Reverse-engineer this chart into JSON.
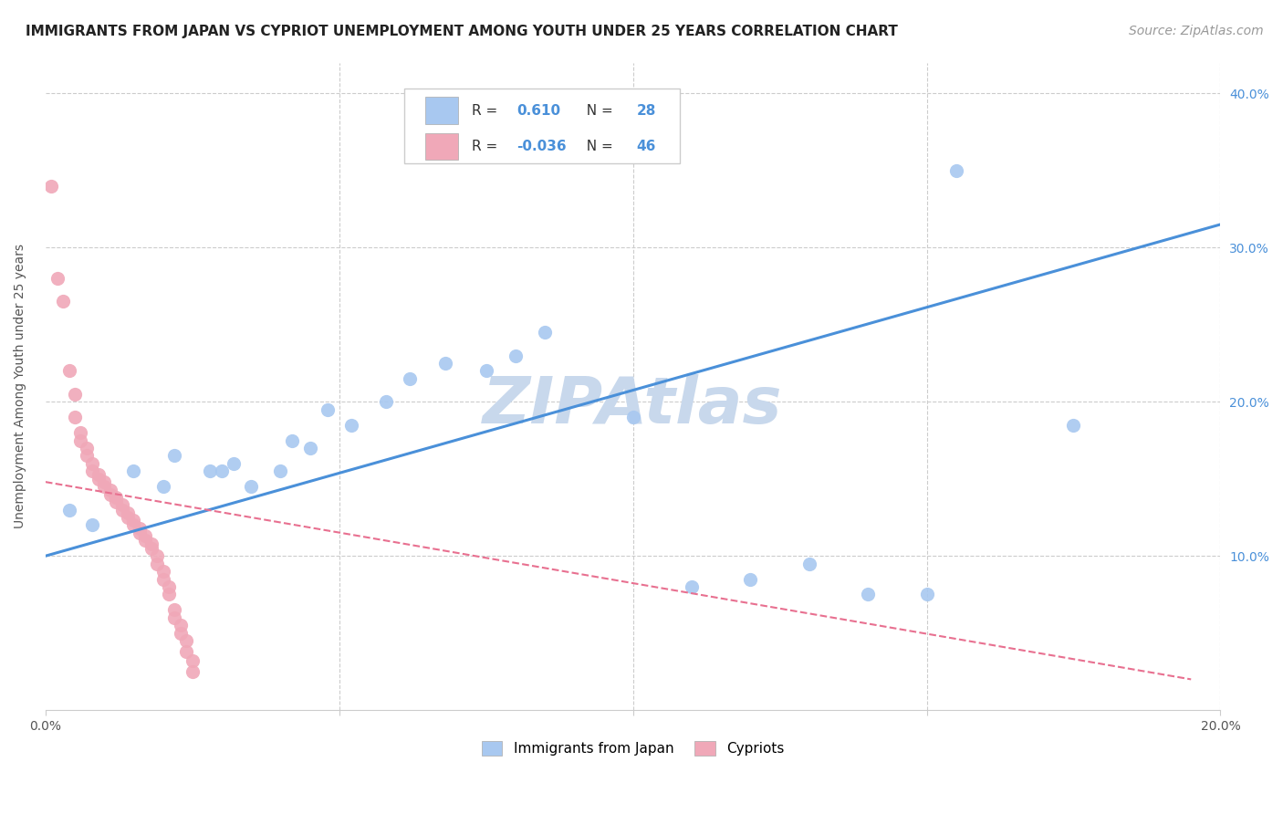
{
  "title": "IMMIGRANTS FROM JAPAN VS CYPRIOT UNEMPLOYMENT AMONG YOUTH UNDER 25 YEARS CORRELATION CHART",
  "source": "Source: ZipAtlas.com",
  "ylabel": "Unemployment Among Youth under 25 years",
  "watermark": "ZIPAtlas",
  "xmin": 0.0,
  "xmax": 0.2,
  "ymin": 0.0,
  "ymax": 0.42,
  "legend_entries": [
    {
      "color": "#a8c8f0",
      "label": "Immigrants from Japan",
      "R": "0.610",
      "N": "28"
    },
    {
      "color": "#f0a8b8",
      "label": "Cypriots",
      "R": "-0.036",
      "N": "46"
    }
  ],
  "japan_dots": [
    [
      0.004,
      0.13
    ],
    [
      0.008,
      0.12
    ],
    [
      0.015,
      0.155
    ],
    [
      0.02,
      0.145
    ],
    [
      0.022,
      0.165
    ],
    [
      0.028,
      0.155
    ],
    [
      0.03,
      0.155
    ],
    [
      0.032,
      0.16
    ],
    [
      0.035,
      0.145
    ],
    [
      0.04,
      0.155
    ],
    [
      0.042,
      0.175
    ],
    [
      0.045,
      0.17
    ],
    [
      0.048,
      0.195
    ],
    [
      0.052,
      0.185
    ],
    [
      0.058,
      0.2
    ],
    [
      0.062,
      0.215
    ],
    [
      0.068,
      0.225
    ],
    [
      0.075,
      0.22
    ],
    [
      0.08,
      0.23
    ],
    [
      0.085,
      0.245
    ],
    [
      0.1,
      0.19
    ],
    [
      0.11,
      0.08
    ],
    [
      0.12,
      0.085
    ],
    [
      0.13,
      0.095
    ],
    [
      0.14,
      0.075
    ],
    [
      0.15,
      0.075
    ],
    [
      0.155,
      0.35
    ],
    [
      0.175,
      0.185
    ]
  ],
  "cypriot_dots": [
    [
      0.001,
      0.34
    ],
    [
      0.002,
      0.28
    ],
    [
      0.003,
      0.265
    ],
    [
      0.004,
      0.22
    ],
    [
      0.005,
      0.205
    ],
    [
      0.005,
      0.19
    ],
    [
      0.006,
      0.18
    ],
    [
      0.006,
      0.175
    ],
    [
      0.007,
      0.17
    ],
    [
      0.007,
      0.165
    ],
    [
      0.008,
      0.16
    ],
    [
      0.008,
      0.155
    ],
    [
      0.009,
      0.153
    ],
    [
      0.009,
      0.15
    ],
    [
      0.01,
      0.148
    ],
    [
      0.01,
      0.145
    ],
    [
      0.011,
      0.143
    ],
    [
      0.011,
      0.14
    ],
    [
      0.012,
      0.138
    ],
    [
      0.012,
      0.135
    ],
    [
      0.013,
      0.133
    ],
    [
      0.013,
      0.13
    ],
    [
      0.014,
      0.128
    ],
    [
      0.014,
      0.125
    ],
    [
      0.015,
      0.123
    ],
    [
      0.015,
      0.12
    ],
    [
      0.016,
      0.118
    ],
    [
      0.016,
      0.115
    ],
    [
      0.017,
      0.113
    ],
    [
      0.017,
      0.11
    ],
    [
      0.018,
      0.108
    ],
    [
      0.018,
      0.105
    ],
    [
      0.019,
      0.1
    ],
    [
      0.019,
      0.095
    ],
    [
      0.02,
      0.09
    ],
    [
      0.02,
      0.085
    ],
    [
      0.021,
      0.08
    ],
    [
      0.021,
      0.075
    ],
    [
      0.022,
      0.065
    ],
    [
      0.022,
      0.06
    ],
    [
      0.023,
      0.055
    ],
    [
      0.023,
      0.05
    ],
    [
      0.024,
      0.045
    ],
    [
      0.024,
      0.038
    ],
    [
      0.025,
      0.032
    ],
    [
      0.025,
      0.025
    ]
  ],
  "japan_line_x": [
    0.0,
    0.2
  ],
  "japan_line_y": [
    0.1,
    0.315
  ],
  "cypriot_line_x": [
    0.0,
    0.195
  ],
  "cypriot_line_y": [
    0.148,
    0.02
  ],
  "japan_line_color": "#4a90d9",
  "cypriot_line_color": "#e87090",
  "japan_dot_color": "#a8c8f0",
  "cypriot_dot_color": "#f0a8b8",
  "background_color": "#ffffff",
  "grid_color": "#cccccc",
  "watermark_color": "#c8d8ec",
  "title_fontsize": 11,
  "source_fontsize": 10,
  "ylabel_fontsize": 10,
  "tick_fontsize": 10,
  "legend_fontsize": 11
}
